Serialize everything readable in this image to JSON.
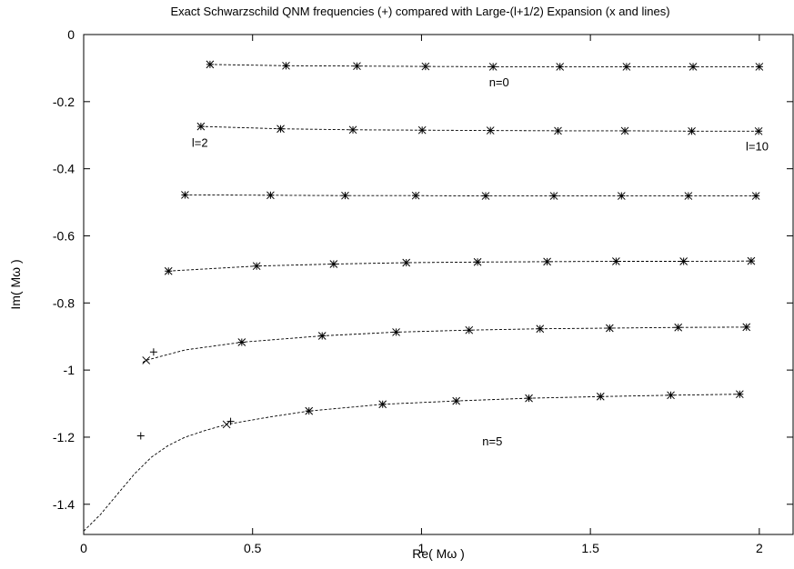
{
  "chart_data": {
    "type": "scatter",
    "title": "Exact Schwarzschild QNM frequencies (+) compared with Large-(l+1/2) Expansion (x and lines)",
    "xlabel": "Re( Mω )",
    "ylabel": "Im( Mω )",
    "xlim": [
      0,
      2.1
    ],
    "ylim": [
      -1.49,
      0
    ],
    "xticks": [
      "0",
      "0.5",
      "1",
      "1.5",
      "2"
    ],
    "yticks": [
      "0",
      "-0.2",
      "-0.4",
      "-0.6",
      "-0.8",
      "-1",
      "-1.2",
      "-1.4"
    ],
    "grid": false,
    "legend": "none",
    "annotations": [
      {
        "text": "n=0",
        "x": 1.2,
        "y": -0.155
      },
      {
        "text": "l=2",
        "x": 0.32,
        "y": -0.335
      },
      {
        "text": "l=10",
        "x": 1.96,
        "y": -0.345
      },
      {
        "text": "n=5",
        "x": 1.18,
        "y": -1.225
      }
    ],
    "series": [
      {
        "exact": [
          [
            0.374,
            -0.089
          ],
          [
            0.599,
            -0.093
          ],
          [
            0.809,
            -0.094
          ],
          [
            1.012,
            -0.095
          ],
          [
            1.212,
            -0.096
          ],
          [
            1.41,
            -0.096
          ],
          [
            1.607,
            -0.096
          ],
          [
            1.804,
            -0.096
          ],
          [
            2.0,
            -0.096
          ]
        ],
        "expansion": [
          [
            0.374,
            -0.089
          ],
          [
            0.599,
            -0.093
          ],
          [
            0.809,
            -0.094
          ],
          [
            1.012,
            -0.095
          ],
          [
            1.212,
            -0.096
          ],
          [
            1.41,
            -0.096
          ],
          [
            1.607,
            -0.096
          ],
          [
            1.804,
            -0.096
          ],
          [
            2.0,
            -0.096
          ]
        ],
        "curve": [
          [
            0.374,
            -0.089
          ],
          [
            0.599,
            -0.093
          ],
          [
            0.809,
            -0.094
          ],
          [
            1.012,
            -0.095
          ],
          [
            1.212,
            -0.096
          ],
          [
            1.41,
            -0.096
          ],
          [
            1.607,
            -0.096
          ],
          [
            1.804,
            -0.096
          ],
          [
            2.0,
            -0.096
          ]
        ]
      },
      {
        "exact": [
          [
            0.347,
            -0.274
          ],
          [
            0.583,
            -0.281
          ],
          [
            0.797,
            -0.284
          ],
          [
            1.002,
            -0.285
          ],
          [
            1.204,
            -0.286
          ],
          [
            1.404,
            -0.287
          ],
          [
            1.602,
            -0.287
          ],
          [
            1.8,
            -0.288
          ],
          [
            1.998,
            -0.288
          ]
        ],
        "expansion": [
          [
            0.347,
            -0.274
          ],
          [
            0.583,
            -0.281
          ],
          [
            0.797,
            -0.284
          ],
          [
            1.002,
            -0.285
          ],
          [
            1.204,
            -0.286
          ],
          [
            1.404,
            -0.287
          ],
          [
            1.602,
            -0.287
          ],
          [
            1.8,
            -0.288
          ],
          [
            1.998,
            -0.288
          ]
        ],
        "curve": [
          [
            0.347,
            -0.274
          ],
          [
            0.583,
            -0.281
          ],
          [
            0.797,
            -0.284
          ],
          [
            1.002,
            -0.285
          ],
          [
            1.204,
            -0.286
          ],
          [
            1.404,
            -0.287
          ],
          [
            1.602,
            -0.287
          ],
          [
            1.8,
            -0.288
          ],
          [
            1.998,
            -0.288
          ]
        ]
      },
      {
        "exact": [
          [
            0.3,
            -0.478
          ],
          [
            0.553,
            -0.479
          ],
          [
            0.774,
            -0.48
          ],
          [
            0.983,
            -0.48
          ],
          [
            1.19,
            -0.481
          ],
          [
            1.392,
            -0.481
          ],
          [
            1.592,
            -0.481
          ],
          [
            1.79,
            -0.481
          ],
          [
            1.99,
            -0.481
          ]
        ],
        "expansion": [
          [
            0.3,
            -0.478
          ],
          [
            0.553,
            -0.479
          ],
          [
            0.774,
            -0.48
          ],
          [
            0.983,
            -0.48
          ],
          [
            1.19,
            -0.481
          ],
          [
            1.392,
            -0.481
          ],
          [
            1.592,
            -0.481
          ],
          [
            1.79,
            -0.481
          ],
          [
            1.99,
            -0.481
          ]
        ],
        "curve": [
          [
            0.3,
            -0.478
          ],
          [
            0.553,
            -0.479
          ],
          [
            0.774,
            -0.48
          ],
          [
            0.983,
            -0.48
          ],
          [
            1.19,
            -0.481
          ],
          [
            1.392,
            -0.481
          ],
          [
            1.592,
            -0.481
          ],
          [
            1.79,
            -0.481
          ],
          [
            1.99,
            -0.481
          ]
        ]
      },
      {
        "exact": [
          [
            0.251,
            -0.705
          ],
          [
            0.512,
            -0.69
          ],
          [
            0.74,
            -0.684
          ],
          [
            0.955,
            -0.68
          ],
          [
            1.166,
            -0.678
          ],
          [
            1.372,
            -0.677
          ],
          [
            1.576,
            -0.676
          ],
          [
            1.776,
            -0.676
          ],
          [
            1.976,
            -0.675
          ]
        ],
        "expansion": [
          [
            0.251,
            -0.705
          ],
          [
            0.512,
            -0.69
          ],
          [
            0.74,
            -0.684
          ],
          [
            0.955,
            -0.68
          ],
          [
            1.166,
            -0.678
          ],
          [
            1.372,
            -0.677
          ],
          [
            1.576,
            -0.676
          ],
          [
            1.776,
            -0.676
          ],
          [
            1.976,
            -0.675
          ]
        ],
        "curve": [
          [
            0.251,
            -0.705
          ],
          [
            0.512,
            -0.69
          ],
          [
            0.74,
            -0.684
          ],
          [
            0.955,
            -0.68
          ],
          [
            1.166,
            -0.678
          ],
          [
            1.372,
            -0.677
          ],
          [
            1.576,
            -0.676
          ],
          [
            1.776,
            -0.676
          ],
          [
            1.976,
            -0.675
          ]
        ]
      },
      {
        "exact": [
          [
            0.207,
            -0.946
          ],
          [
            0.468,
            -0.917
          ],
          [
            0.706,
            -0.898
          ],
          [
            0.925,
            -0.887
          ],
          [
            1.141,
            -0.881
          ],
          [
            1.351,
            -0.877
          ],
          [
            1.557,
            -0.875
          ],
          [
            1.76,
            -0.873
          ],
          [
            1.962,
            -0.872
          ]
        ],
        "expansion": [
          [
            0.185,
            -0.971
          ],
          [
            0.468,
            -0.917
          ],
          [
            0.706,
            -0.898
          ],
          [
            0.925,
            -0.887
          ],
          [
            1.141,
            -0.881
          ],
          [
            1.351,
            -0.877
          ],
          [
            1.557,
            -0.875
          ],
          [
            1.76,
            -0.873
          ],
          [
            1.962,
            -0.872
          ]
        ],
        "curve": [
          [
            0.175,
            -0.977
          ],
          [
            0.185,
            -0.971
          ],
          [
            0.3,
            -0.94
          ],
          [
            0.468,
            -0.917
          ],
          [
            0.706,
            -0.898
          ],
          [
            0.925,
            -0.887
          ],
          [
            1.141,
            -0.881
          ],
          [
            1.351,
            -0.877
          ],
          [
            1.557,
            -0.875
          ],
          [
            1.76,
            -0.873
          ],
          [
            1.962,
            -0.872
          ]
        ]
      },
      {
        "exact": [
          [
            0.169,
            -1.196
          ],
          [
            0.435,
            -1.153
          ],
          [
            0.667,
            -1.122
          ],
          [
            0.885,
            -1.102
          ],
          [
            1.103,
            -1.092
          ],
          [
            1.318,
            -1.084
          ],
          [
            1.53,
            -1.079
          ],
          [
            1.738,
            -1.075
          ],
          [
            1.942,
            -1.072
          ]
        ],
        "expansion": [
          [
            0.423,
            -1.162
          ],
          [
            0.667,
            -1.122
          ],
          [
            0.885,
            -1.102
          ],
          [
            1.103,
            -1.092
          ],
          [
            1.318,
            -1.084
          ],
          [
            1.53,
            -1.079
          ],
          [
            1.738,
            -1.075
          ],
          [
            1.942,
            -1.072
          ]
        ],
        "curve": [
          [
            0.0,
            -1.48
          ],
          [
            0.05,
            -1.43
          ],
          [
            0.1,
            -1.37
          ],
          [
            0.15,
            -1.31
          ],
          [
            0.2,
            -1.26
          ],
          [
            0.25,
            -1.225
          ],
          [
            0.3,
            -1.2
          ],
          [
            0.36,
            -1.18
          ],
          [
            0.423,
            -1.162
          ],
          [
            0.55,
            -1.14
          ],
          [
            0.667,
            -1.122
          ],
          [
            0.885,
            -1.102
          ],
          [
            1.103,
            -1.092
          ],
          [
            1.318,
            -1.084
          ],
          [
            1.53,
            -1.079
          ],
          [
            1.738,
            -1.075
          ],
          [
            1.942,
            -1.072
          ]
        ]
      }
    ]
  }
}
